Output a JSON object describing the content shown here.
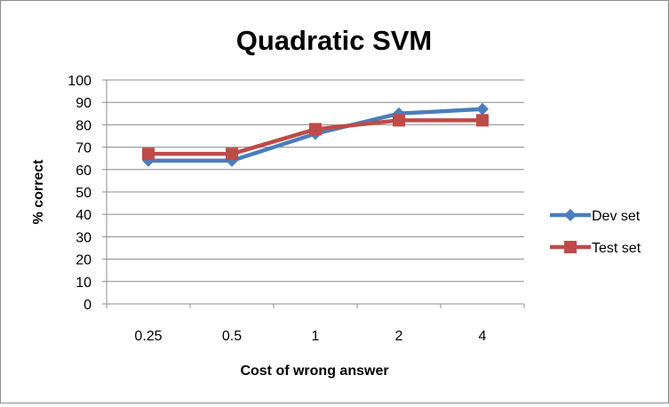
{
  "chart_data": {
    "type": "line",
    "title": "Quadratic SVM",
    "xlabel": "Cost of wrong answer",
    "ylabel": "% correct",
    "categories": [
      "0.25",
      "0.5",
      "1",
      "2",
      "4"
    ],
    "ylim": [
      0,
      100
    ],
    "ytick_step": 10,
    "grid": true,
    "legend_position": "right",
    "series": [
      {
        "name": "Dev set",
        "values": [
          64,
          64,
          76,
          85,
          87
        ],
        "color": "#4a7ebb",
        "marker": "diamond"
      },
      {
        "name": "Test set",
        "values": [
          67,
          67,
          78,
          82,
          82
        ],
        "color": "#be4b48",
        "marker": "square"
      }
    ]
  }
}
